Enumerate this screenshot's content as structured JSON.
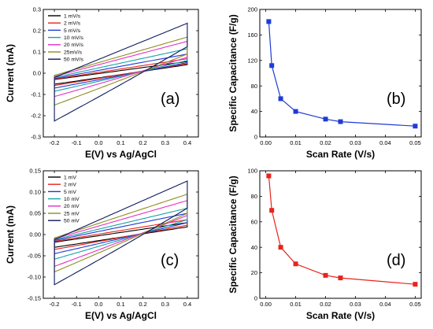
{
  "chart_data": [
    {
      "panel": "a",
      "type": "line",
      "panel_label": "(a)",
      "xlabel": "E(V) vs Ag/AgCl",
      "ylabel": "Current (mA)",
      "xlim": [
        -0.25,
        0.45
      ],
      "ylim": [
        -0.3,
        0.3
      ],
      "xticks": [
        -0.2,
        -0.1,
        0.0,
        0.1,
        0.2,
        0.3,
        0.4
      ],
      "yticks": [
        -0.3,
        -0.2,
        -0.1,
        0.0,
        0.1,
        0.2,
        0.3
      ],
      "tick_format": {
        "x": 1,
        "y": 1
      },
      "legend": "top-left",
      "series": [
        {
          "name": "1 mV/s",
          "color": "#000000",
          "loop": {
            "e0": -0.2,
            "e1": 0.4,
            "lower0": -0.052,
            "lower1": 0.04,
            "upper0": -0.03,
            "upper1": 0.055,
            "k": 10
          }
        },
        {
          "name": "2 mV/s",
          "color": "#e8231c",
          "loop": {
            "e0": -0.2,
            "e1": 0.4,
            "lower0": -0.058,
            "lower1": 0.045,
            "upper0": -0.028,
            "upper1": 0.068,
            "k": 10
          }
        },
        {
          "name": "5 mV/s",
          "color": "#1f3bd6",
          "loop": {
            "e0": -0.2,
            "e1": 0.4,
            "lower0": -0.07,
            "lower1": 0.05,
            "upper0": -0.025,
            "upper1": 0.09,
            "k": 10
          }
        },
        {
          "name": "10 mV/s",
          "color": "#1aa3a3",
          "loop": {
            "e0": -0.2,
            "e1": 0.4,
            "lower0": -0.085,
            "lower1": 0.06,
            "upper0": -0.02,
            "upper1": 0.115,
            "k": 10
          }
        },
        {
          "name": "20 mV/s",
          "color": "#e62ec8",
          "loop": {
            "e0": -0.2,
            "e1": 0.4,
            "lower0": -0.11,
            "lower1": 0.075,
            "upper0": -0.015,
            "upper1": 0.15,
            "k": 10
          }
        },
        {
          "name": "25mV/s",
          "color": "#8f8f1f",
          "loop": {
            "e0": -0.2,
            "e1": 0.4,
            "lower0": -0.15,
            "lower1": 0.09,
            "upper0": -0.01,
            "upper1": 0.17,
            "k": 10
          }
        },
        {
          "name": "50 mV/s",
          "color": "#0d1a5c",
          "loop": {
            "e0": -0.2,
            "e1": 0.4,
            "lower0": -0.225,
            "lower1": 0.125,
            "upper0": -0.02,
            "upper1": 0.235,
            "k": 10
          }
        }
      ]
    },
    {
      "panel": "b",
      "type": "line",
      "panel_label": "(b)",
      "xlabel": "Scan Rate (V/s)",
      "ylabel": "Specific Capacitance (F/g)",
      "xlim": [
        -0.002,
        0.052
      ],
      "ylim": [
        0,
        200
      ],
      "xticks": [
        0.0,
        0.01,
        0.02,
        0.03,
        0.04,
        0.05
      ],
      "yticks": [
        0,
        40,
        80,
        120,
        160,
        200
      ],
      "tick_format": {
        "x": 2,
        "y": 0
      },
      "series": [
        {
          "color": "#1f3bd6",
          "x": [
            0.001,
            0.002,
            0.005,
            0.01,
            0.02,
            0.025,
            0.05
          ],
          "y": [
            181,
            112,
            60,
            40,
            28,
            24,
            17
          ]
        }
      ]
    },
    {
      "panel": "c",
      "type": "line",
      "panel_label": "(c)",
      "xlabel": "E(V) vs Ag/AgCl",
      "ylabel": "Current (mA)",
      "xlim": [
        -0.25,
        0.45
      ],
      "ylim": [
        -0.15,
        0.15
      ],
      "xticks": [
        -0.2,
        -0.1,
        0.0,
        0.1,
        0.2,
        0.3,
        0.4
      ],
      "yticks": [
        -0.15,
        -0.1,
        -0.05,
        0.0,
        0.05,
        0.1,
        0.15
      ],
      "tick_format": {
        "x": 1,
        "y": 2
      },
      "legend": "top-left",
      "series": [
        {
          "name": "1 mV",
          "color": "#000000",
          "loop": {
            "e0": -0.2,
            "e1": 0.4,
            "lower0": -0.03,
            "lower1": 0.018,
            "upper0": -0.018,
            "upper1": 0.028,
            "k": 10
          }
        },
        {
          "name": "2 mV",
          "color": "#e8231c",
          "loop": {
            "e0": -0.2,
            "e1": 0.4,
            "lower0": -0.035,
            "lower1": 0.022,
            "upper0": -0.016,
            "upper1": 0.035,
            "k": 10
          }
        },
        {
          "name": "5 mV",
          "color": "#1f3bd6",
          "loop": {
            "e0": -0.2,
            "e1": 0.4,
            "lower0": -0.045,
            "lower1": 0.028,
            "upper0": -0.014,
            "upper1": 0.05,
            "k": 10
          }
        },
        {
          "name": "10 mV",
          "color": "#1aa3a3",
          "loop": {
            "e0": -0.2,
            "e1": 0.4,
            "lower0": -0.058,
            "lower1": 0.035,
            "upper0": -0.012,
            "upper1": 0.062,
            "k": 10
          }
        },
        {
          "name": "20 mV",
          "color": "#e62ec8",
          "loop": {
            "e0": -0.2,
            "e1": 0.4,
            "lower0": -0.075,
            "lower1": 0.045,
            "upper0": -0.01,
            "upper1": 0.08,
            "k": 10
          }
        },
        {
          "name": "25 mV",
          "color": "#8f8f1f",
          "loop": {
            "e0": -0.2,
            "e1": 0.4,
            "lower0": -0.088,
            "lower1": 0.05,
            "upper0": -0.008,
            "upper1": 0.095,
            "k": 10
          }
        },
        {
          "name": "50 mV",
          "color": "#0d1a5c",
          "loop": {
            "e0": -0.2,
            "e1": 0.4,
            "lower0": -0.118,
            "lower1": 0.062,
            "upper0": -0.012,
            "upper1": 0.126,
            "k": 10
          }
        }
      ]
    },
    {
      "panel": "d",
      "type": "line",
      "panel_label": "(d)",
      "xlabel": "Scan Rate (V/s)",
      "ylabel": "Specific Capacitance (F/g)",
      "xlim": [
        -0.002,
        0.052
      ],
      "ylim": [
        0,
        100
      ],
      "xticks": [
        0.0,
        0.01,
        0.02,
        0.03,
        0.04,
        0.05
      ],
      "yticks": [
        0,
        20,
        40,
        60,
        80,
        100
      ],
      "tick_format": {
        "x": 2,
        "y": 0
      },
      "series": [
        {
          "color": "#e8231c",
          "x": [
            0.001,
            0.002,
            0.005,
            0.01,
            0.02,
            0.025,
            0.05
          ],
          "y": [
            96,
            69,
            40,
            27,
            18,
            16,
            11
          ]
        }
      ]
    }
  ]
}
